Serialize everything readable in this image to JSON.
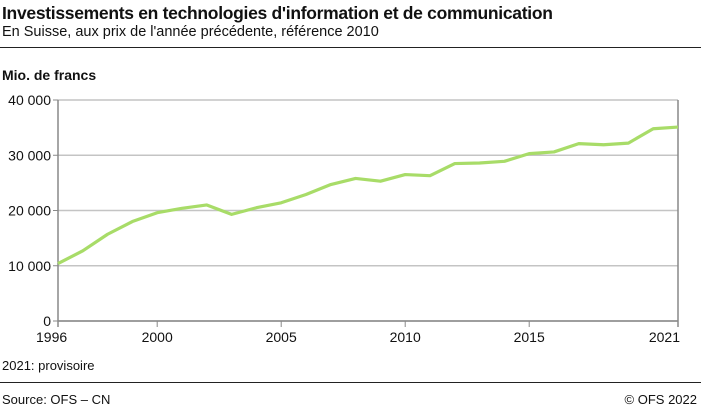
{
  "header": {
    "title": "Investissements en technologies d'information et de communication",
    "subtitle": "En Suisse, aux prix de l'année précédente, référence 2010"
  },
  "footer": {
    "note": "2021: provisoire",
    "source": "Source: OFS – CN",
    "copyright": "© OFS 2022"
  },
  "chart_data": {
    "type": "line",
    "title": "Investissements en technologies d'information et de communication",
    "ylabel": "Mio. de francs",
    "xlabel": "",
    "xlim": [
      1996,
      2021
    ],
    "ylim": [
      0,
      40000
    ],
    "grid": true,
    "x_ticks": [
      "1996",
      "2000",
      "2005",
      "2010",
      "2015",
      "2021"
    ],
    "y_ticks": [
      "0",
      "10 000",
      "20 000",
      "30 000",
      "40 000"
    ],
    "color": "#a8dc68",
    "x": [
      1996,
      1997,
      1998,
      1999,
      2000,
      2001,
      2002,
      2003,
      2004,
      2005,
      2006,
      2007,
      2008,
      2009,
      2010,
      2011,
      2012,
      2013,
      2014,
      2015,
      2016,
      2017,
      2018,
      2019,
      2020,
      2021
    ],
    "values": [
      10400,
      12700,
      15700,
      18000,
      19600,
      20400,
      21000,
      19300,
      20500,
      21400,
      22900,
      24700,
      25800,
      25300,
      26500,
      26300,
      28500,
      28600,
      28900,
      30300,
      30600,
      32100,
      31900,
      32200,
      34800,
      35100
    ]
  }
}
